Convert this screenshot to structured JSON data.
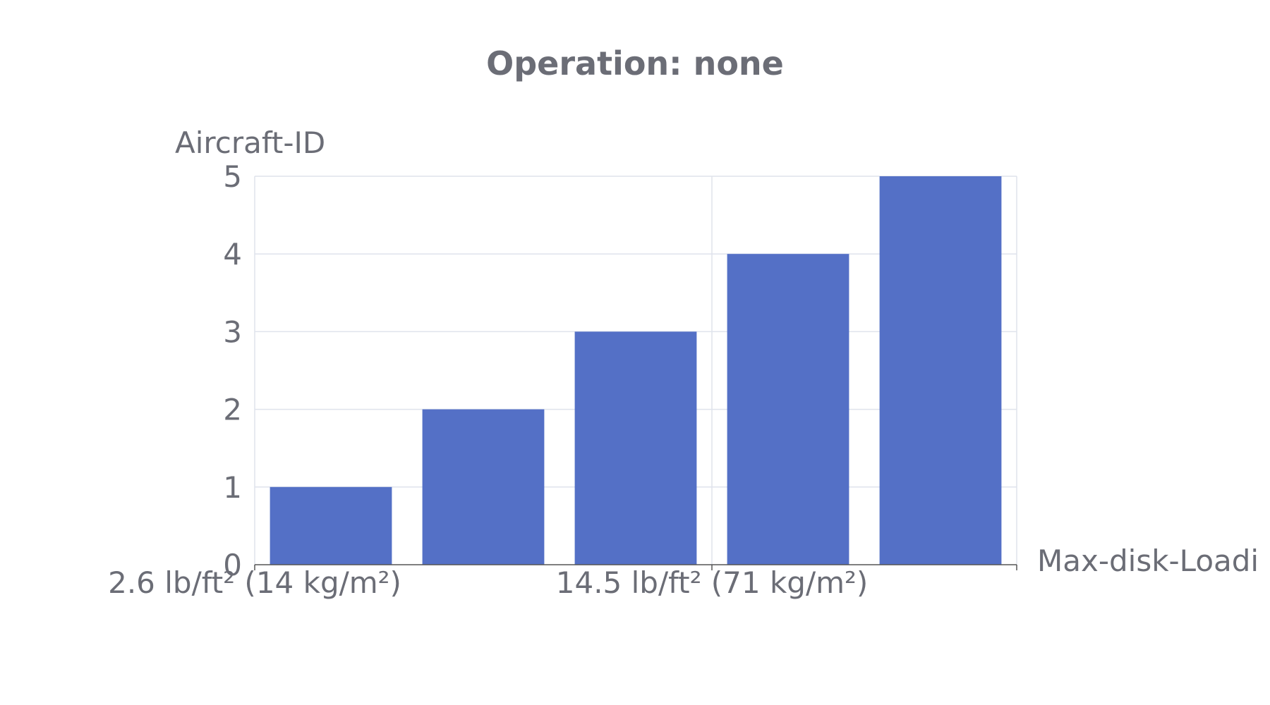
{
  "chart_data": {
    "type": "bar",
    "title": "Operation: none",
    "ylabel": "Aircraft-ID",
    "xlabel": "Max-disk-Loadi",
    "ylim": [
      0,
      5
    ],
    "yticks": [
      "0",
      "1",
      "2",
      "3",
      "4",
      "5"
    ],
    "categories": [
      "",
      "",
      "",
      "",
      ""
    ],
    "values": [
      1,
      2,
      3,
      4,
      5
    ],
    "xtick_labels": [
      {
        "label": "2.6 lb/ft² (14 kg/m²)",
        "category_index": 0
      },
      {
        "label": "14.5 lb/ft² (71 kg/m²)",
        "category_index": 3
      }
    ],
    "bar_color": "#5470c6",
    "grid": true,
    "legend": "none"
  }
}
